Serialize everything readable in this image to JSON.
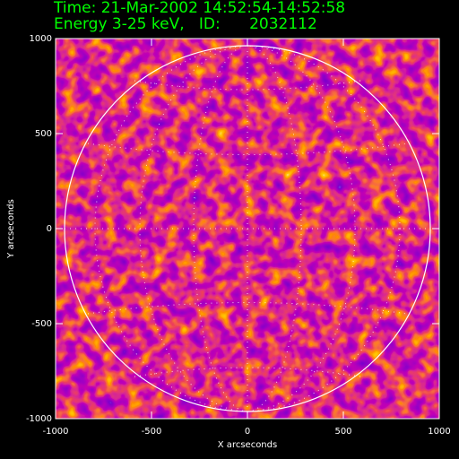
{
  "chart_data": {
    "type": "image",
    "title": "Time: 21-Mar-2002 14:52:54-14:52:58",
    "subtitle": "Energy 3-25 keV,   ID:      2032112",
    "x_label": "X arcseconds",
    "y_label": "Y arcseconds",
    "xlim": [
      -1000,
      1000
    ],
    "ylim": [
      -1000,
      1000
    ],
    "xticks": [
      -1000,
      -500,
      0,
      500,
      1000
    ],
    "yticks": [
      -1000,
      -500,
      0,
      500,
      1000
    ]
  }
}
